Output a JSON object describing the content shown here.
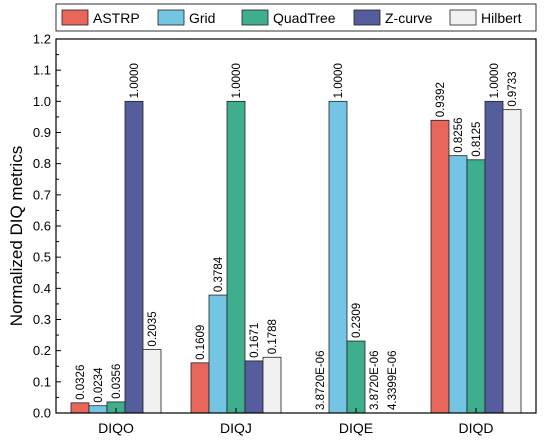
{
  "chart_data": {
    "type": "bar",
    "title": "",
    "xlabel": "",
    "ylabel": "Normalized DIQ metrics",
    "ylim": [
      0,
      1.2
    ],
    "yticks": [
      "0.0",
      "0.1",
      "0.2",
      "0.3",
      "0.4",
      "0.5",
      "0.6",
      "0.7",
      "0.8",
      "0.9",
      "1.0",
      "1.1",
      "1.2"
    ],
    "categories": [
      "DIQO",
      "DIQJ",
      "DIQE",
      "DIQD"
    ],
    "legend_position": "top",
    "grid": false,
    "series": [
      {
        "name": "ASTRP",
        "color": "#e8665a",
        "values": [
          0.0326,
          0.1609,
          3.872e-06,
          0.9392
        ],
        "labels": [
          "0.0326",
          "0.1609",
          "3.8720E-06",
          "0.9392"
        ]
      },
      {
        "name": "Grid",
        "color": "#74c5e3",
        "values": [
          0.0234,
          0.3784,
          1.0,
          0.8256
        ],
        "labels": [
          "0.0234",
          "0.3784",
          "1.0000",
          "0.8256"
        ]
      },
      {
        "name": "QuadTree",
        "color": "#3fae8e",
        "values": [
          0.0356,
          1.0,
          0.2309,
          0.8125
        ],
        "labels": [
          "0.0356",
          "1.0000",
          "0.2309",
          "0.8125"
        ]
      },
      {
        "name": "Z-curve",
        "color": "#565d9c",
        "values": [
          1.0,
          0.1671,
          3.872e-06,
          1.0
        ],
        "labels": [
          "1.0000",
          "0.1671",
          "3.8720E-06",
          "1.0000"
        ]
      },
      {
        "name": "Hilbert",
        "color": "#f1f1f1",
        "values": [
          0.2035,
          0.1788,
          4.3399e-06,
          0.9733
        ],
        "labels": [
          "0.2035",
          "0.1788",
          "4.3399E-06",
          "0.9733"
        ]
      }
    ]
  }
}
